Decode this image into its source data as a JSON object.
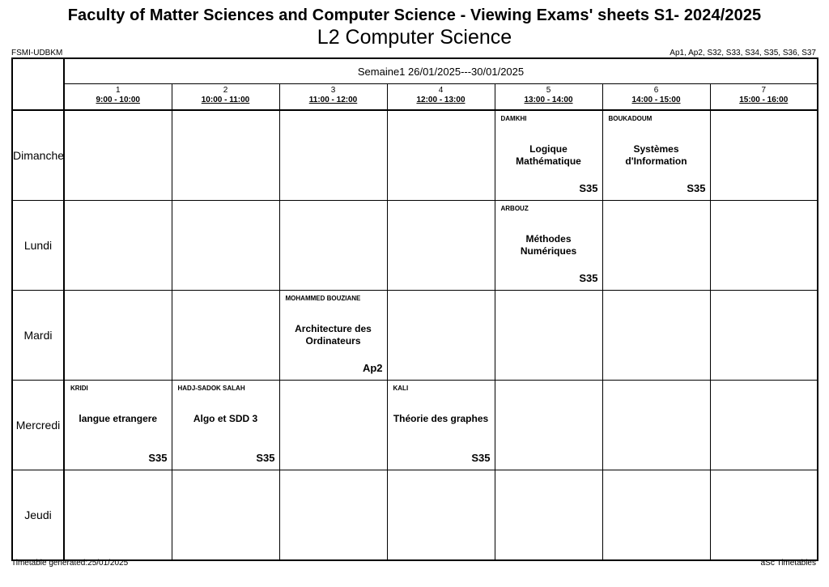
{
  "header": {
    "title": "Faculty of Matter Sciences and Computer Science - Viewing Exams' sheets S1- 2024/2025",
    "subtitle": "L2 Computer Science",
    "school": "FSMI-UDBKM",
    "rooms": "Ap1, Ap2, S32, S33, S34, S35, S36, S37"
  },
  "timetable": {
    "week": "Semaine1 26/01/2025---30/01/2025",
    "periods": [
      {
        "num": "1",
        "time": "9:00 - 10:00"
      },
      {
        "num": "2",
        "time": "10:00 - 11:00"
      },
      {
        "num": "3",
        "time": "11:00 - 12:00"
      },
      {
        "num": "4",
        "time": "12:00 - 13:00"
      },
      {
        "num": "5",
        "time": "13:00 - 14:00"
      },
      {
        "num": "6",
        "time": "14:00 - 15:00"
      },
      {
        "num": "7",
        "time": "15:00 - 16:00"
      }
    ],
    "days": [
      {
        "name": "Dimanche",
        "cells": [
          null,
          null,
          null,
          null,
          {
            "teacher": "DAMKHI",
            "subject": "Logique Mathématique",
            "room": "S35"
          },
          {
            "teacher": "BOUKADOUM",
            "subject": "Systèmes d'Information",
            "room": "S35"
          },
          null
        ]
      },
      {
        "name": "Lundi",
        "cells": [
          null,
          null,
          null,
          null,
          {
            "teacher": "ARBOUZ",
            "subject": "Méthodes Numériques",
            "room": "S35"
          },
          null,
          null
        ]
      },
      {
        "name": "Mardi",
        "cells": [
          null,
          null,
          {
            "teacher": "MOHAMMED BOUZIANE",
            "subject": "Architecture des Ordinateurs",
            "room": "Ap2"
          },
          null,
          null,
          null,
          null
        ]
      },
      {
        "name": "Mercredi",
        "cells": [
          {
            "teacher": "KRIDI",
            "subject": "langue etrangere",
            "room": "S35"
          },
          {
            "teacher": "HADJ-SADOK SALAH",
            "subject": "Algo et SDD 3",
            "room": "S35"
          },
          null,
          {
            "teacher": "KALI",
            "subject": "Théorie des graphes",
            "room": "S35"
          },
          null,
          null,
          null
        ]
      },
      {
        "name": "Jeudi",
        "cells": [
          null,
          null,
          null,
          null,
          null,
          null,
          null
        ]
      }
    ]
  },
  "footer": {
    "generated": "Timetable generated:25/01/2025",
    "brand": "aSc Timetables"
  }
}
